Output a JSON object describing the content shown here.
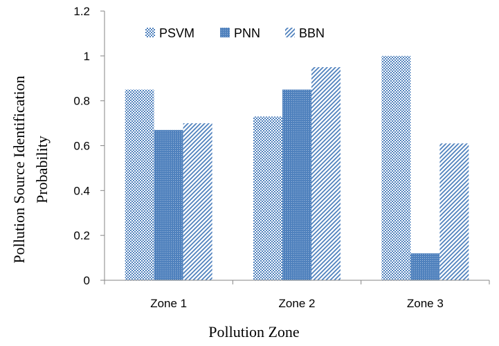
{
  "chart_data": {
    "type": "bar",
    "title": "",
    "xlabel": "Pollution Zone",
    "ylabel_lines": [
      "Pollution Source Identification",
      "Probability"
    ],
    "categories": [
      "Zone 1",
      "Zone 2",
      "Zone 3"
    ],
    "series": [
      {
        "name": "PSVM",
        "pattern": "checker",
        "values": [
          0.85,
          0.73,
          1.0
        ]
      },
      {
        "name": "PNN",
        "pattern": "dense-dots",
        "values": [
          0.67,
          0.85,
          0.12
        ]
      },
      {
        "name": "BBN",
        "pattern": "diagonal-hatch",
        "values": [
          0.7,
          0.95,
          0.61
        ]
      }
    ],
    "ylim": [
      0,
      1.2
    ],
    "yticks": [
      "0",
      "0.2",
      "0.4",
      "0.6",
      "0.8",
      "1",
      "1.2"
    ],
    "ytick_values": [
      0,
      0.2,
      0.4,
      0.6,
      0.8,
      1.0,
      1.2
    ],
    "grid": false,
    "legend_position": "top-left",
    "colors": {
      "bar": "#4f81bd",
      "axis": "#868686"
    }
  }
}
